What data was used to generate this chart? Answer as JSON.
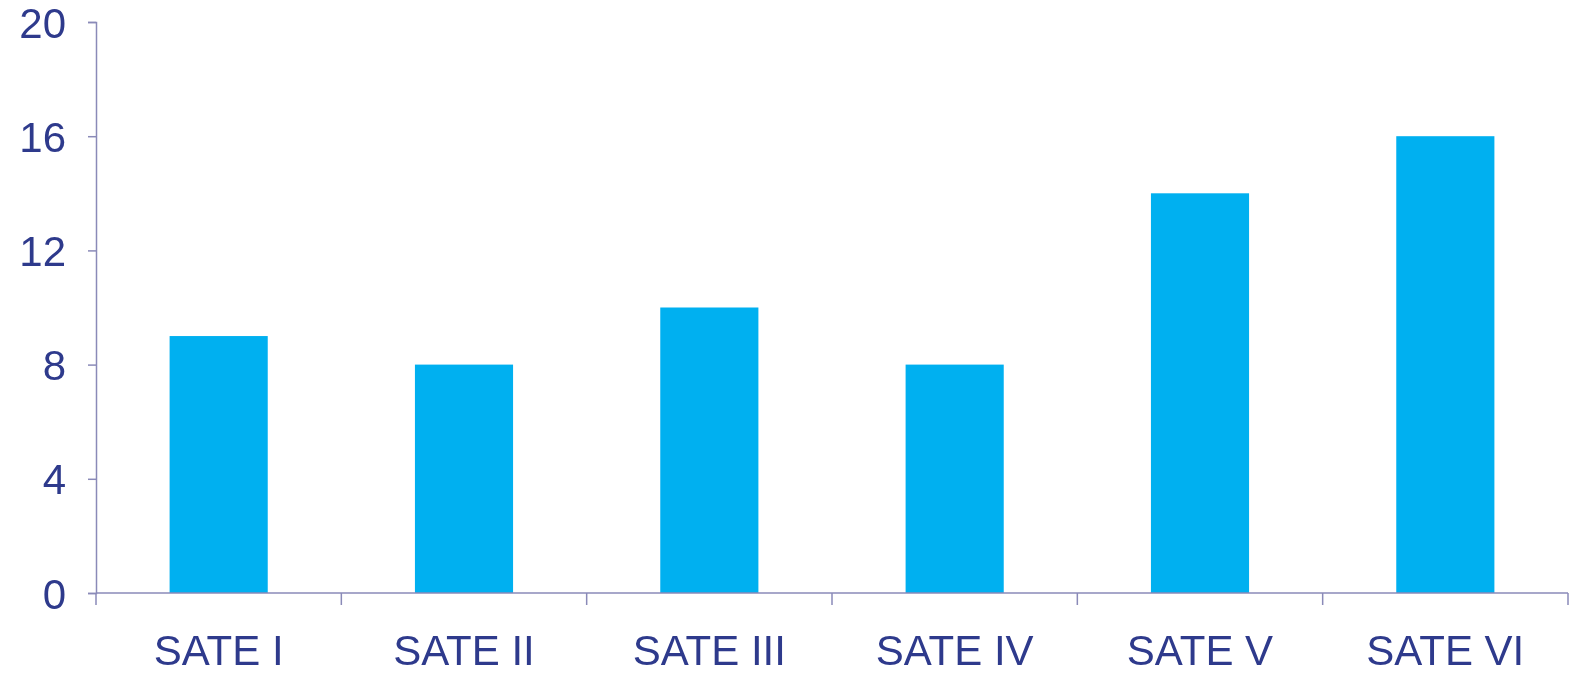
{
  "chart_data": {
    "type": "bar",
    "categories": [
      "SATE I",
      "SATE II",
      "SATE III",
      "SATE IV",
      "SATE V",
      "SATE VI"
    ],
    "values": [
      9,
      8,
      10,
      8,
      14,
      16
    ],
    "color": "#00b0f0",
    "ylim": [
      0,
      20
    ],
    "yticks": [
      0,
      4,
      8,
      12,
      16,
      20
    ],
    "grid": false
  }
}
